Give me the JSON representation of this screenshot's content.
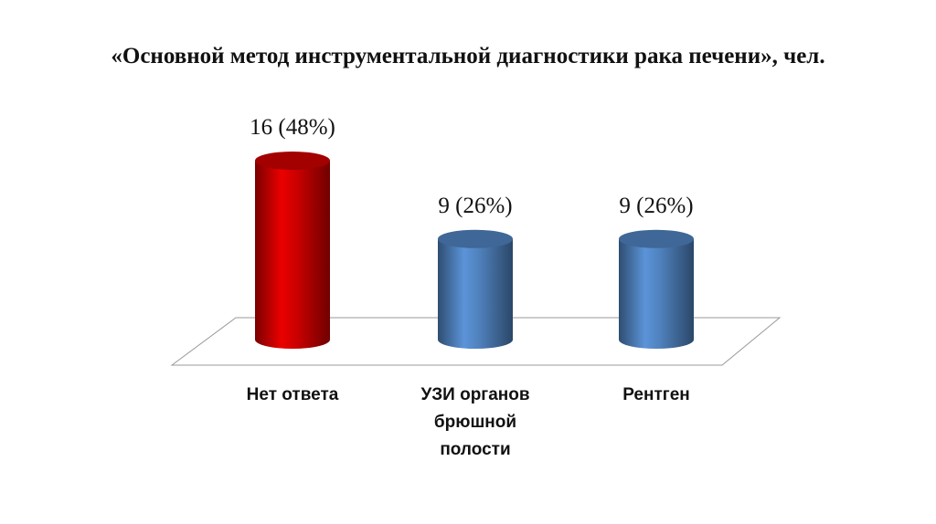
{
  "chart_data": {
    "type": "bar",
    "title": "«Основной метод инструментальной диагностики рака печени», чел.",
    "categories": [
      "Нет ответа",
      "УЗИ органов брюшной полости",
      "Рентген"
    ],
    "values": [
      16,
      9,
      9
    ],
    "value_labels": [
      "16 (48%)",
      "9 (26%)",
      "9 (26%)"
    ],
    "colors": [
      "#cc0000",
      "#4f81bd",
      "#4f81bd"
    ]
  }
}
